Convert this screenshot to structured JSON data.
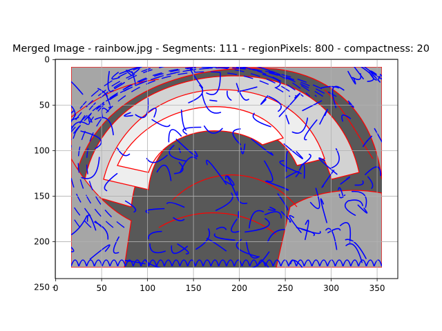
{
  "chart_data": {
    "type": "image",
    "title": "Merged Image - rainbow.jpg - Segments: 111 - regionPixels: 800 - compactness: 20",
    "xlabel": "",
    "ylabel": "",
    "xlim": [
      -0.5,
      372.5
    ],
    "ylim": [
      240.5,
      -0.5
    ],
    "y_inverted": true,
    "grid": true,
    "x_ticks": [
      0,
      50,
      100,
      150,
      200,
      250,
      300,
      350
    ],
    "y_ticks": [
      0,
      50,
      100,
      150,
      200,
      250
    ],
    "image": {
      "width": 372,
      "height": 240,
      "colors": {
        "dark": "#585858",
        "mid": "#a6a6a6",
        "light": "#d2d2d2",
        "lightest": "#eeeeee",
        "white": "#ffffff"
      }
    },
    "overlay": {
      "segment_boundary_color": "#ff0000",
      "stroke_color": "#0000ff",
      "segments": 111
    }
  }
}
